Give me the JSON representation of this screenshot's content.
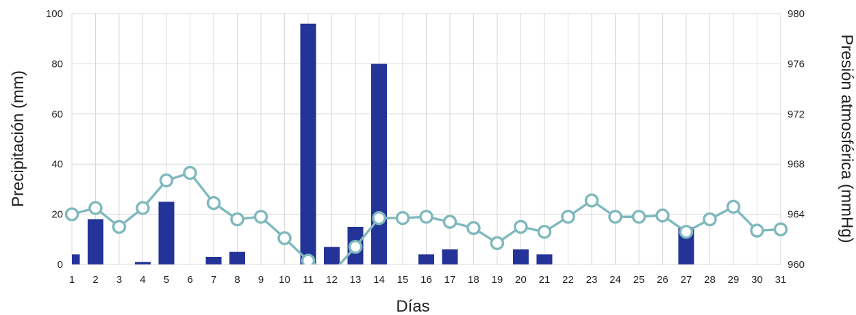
{
  "chart_data": {
    "type": "bar+line",
    "title": "",
    "xlabel": "Días",
    "ylabel": "Precipitación (mm)",
    "y2label": "Presión atmosférica (mmHg)",
    "categories": [
      "1",
      "2",
      "3",
      "4",
      "5",
      "6",
      "7",
      "8",
      "9",
      "10",
      "11",
      "12",
      "13",
      "14",
      "15",
      "16",
      "17",
      "18",
      "19",
      "20",
      "21",
      "22",
      "23",
      "24",
      "25",
      "26",
      "27",
      "28",
      "29",
      "30",
      "31"
    ],
    "ylim": [
      0,
      100
    ],
    "yticks": [
      "0",
      "20",
      "40",
      "60",
      "80",
      "100"
    ],
    "y2lim": [
      960,
      980
    ],
    "y2ticks": [
      "960",
      "964",
      "968",
      "972",
      "976",
      "980"
    ],
    "grid": true,
    "series": [
      {
        "kind": "bar",
        "axis": "left",
        "color": "#233397",
        "values": [
          4,
          18,
          0,
          1,
          25,
          0,
          3,
          5,
          0,
          0,
          96,
          7,
          15,
          80,
          0,
          4,
          6,
          0,
          0,
          6,
          4,
          0,
          0,
          0,
          0,
          0,
          15,
          0,
          0,
          0,
          0
        ]
      },
      {
        "kind": "line",
        "axis": "right",
        "color": "#7fb9bd",
        "values": [
          964.0,
          964.5,
          963.0,
          964.5,
          966.7,
          967.3,
          964.9,
          963.6,
          963.8,
          962.1,
          960.3,
          959.3,
          961.4,
          963.7,
          963.7,
          963.8,
          963.4,
          962.9,
          961.7,
          963.0,
          962.6,
          963.8,
          965.1,
          963.8,
          963.8,
          963.9,
          962.6,
          963.6,
          964.6,
          962.7,
          962.8
        ]
      }
    ]
  }
}
